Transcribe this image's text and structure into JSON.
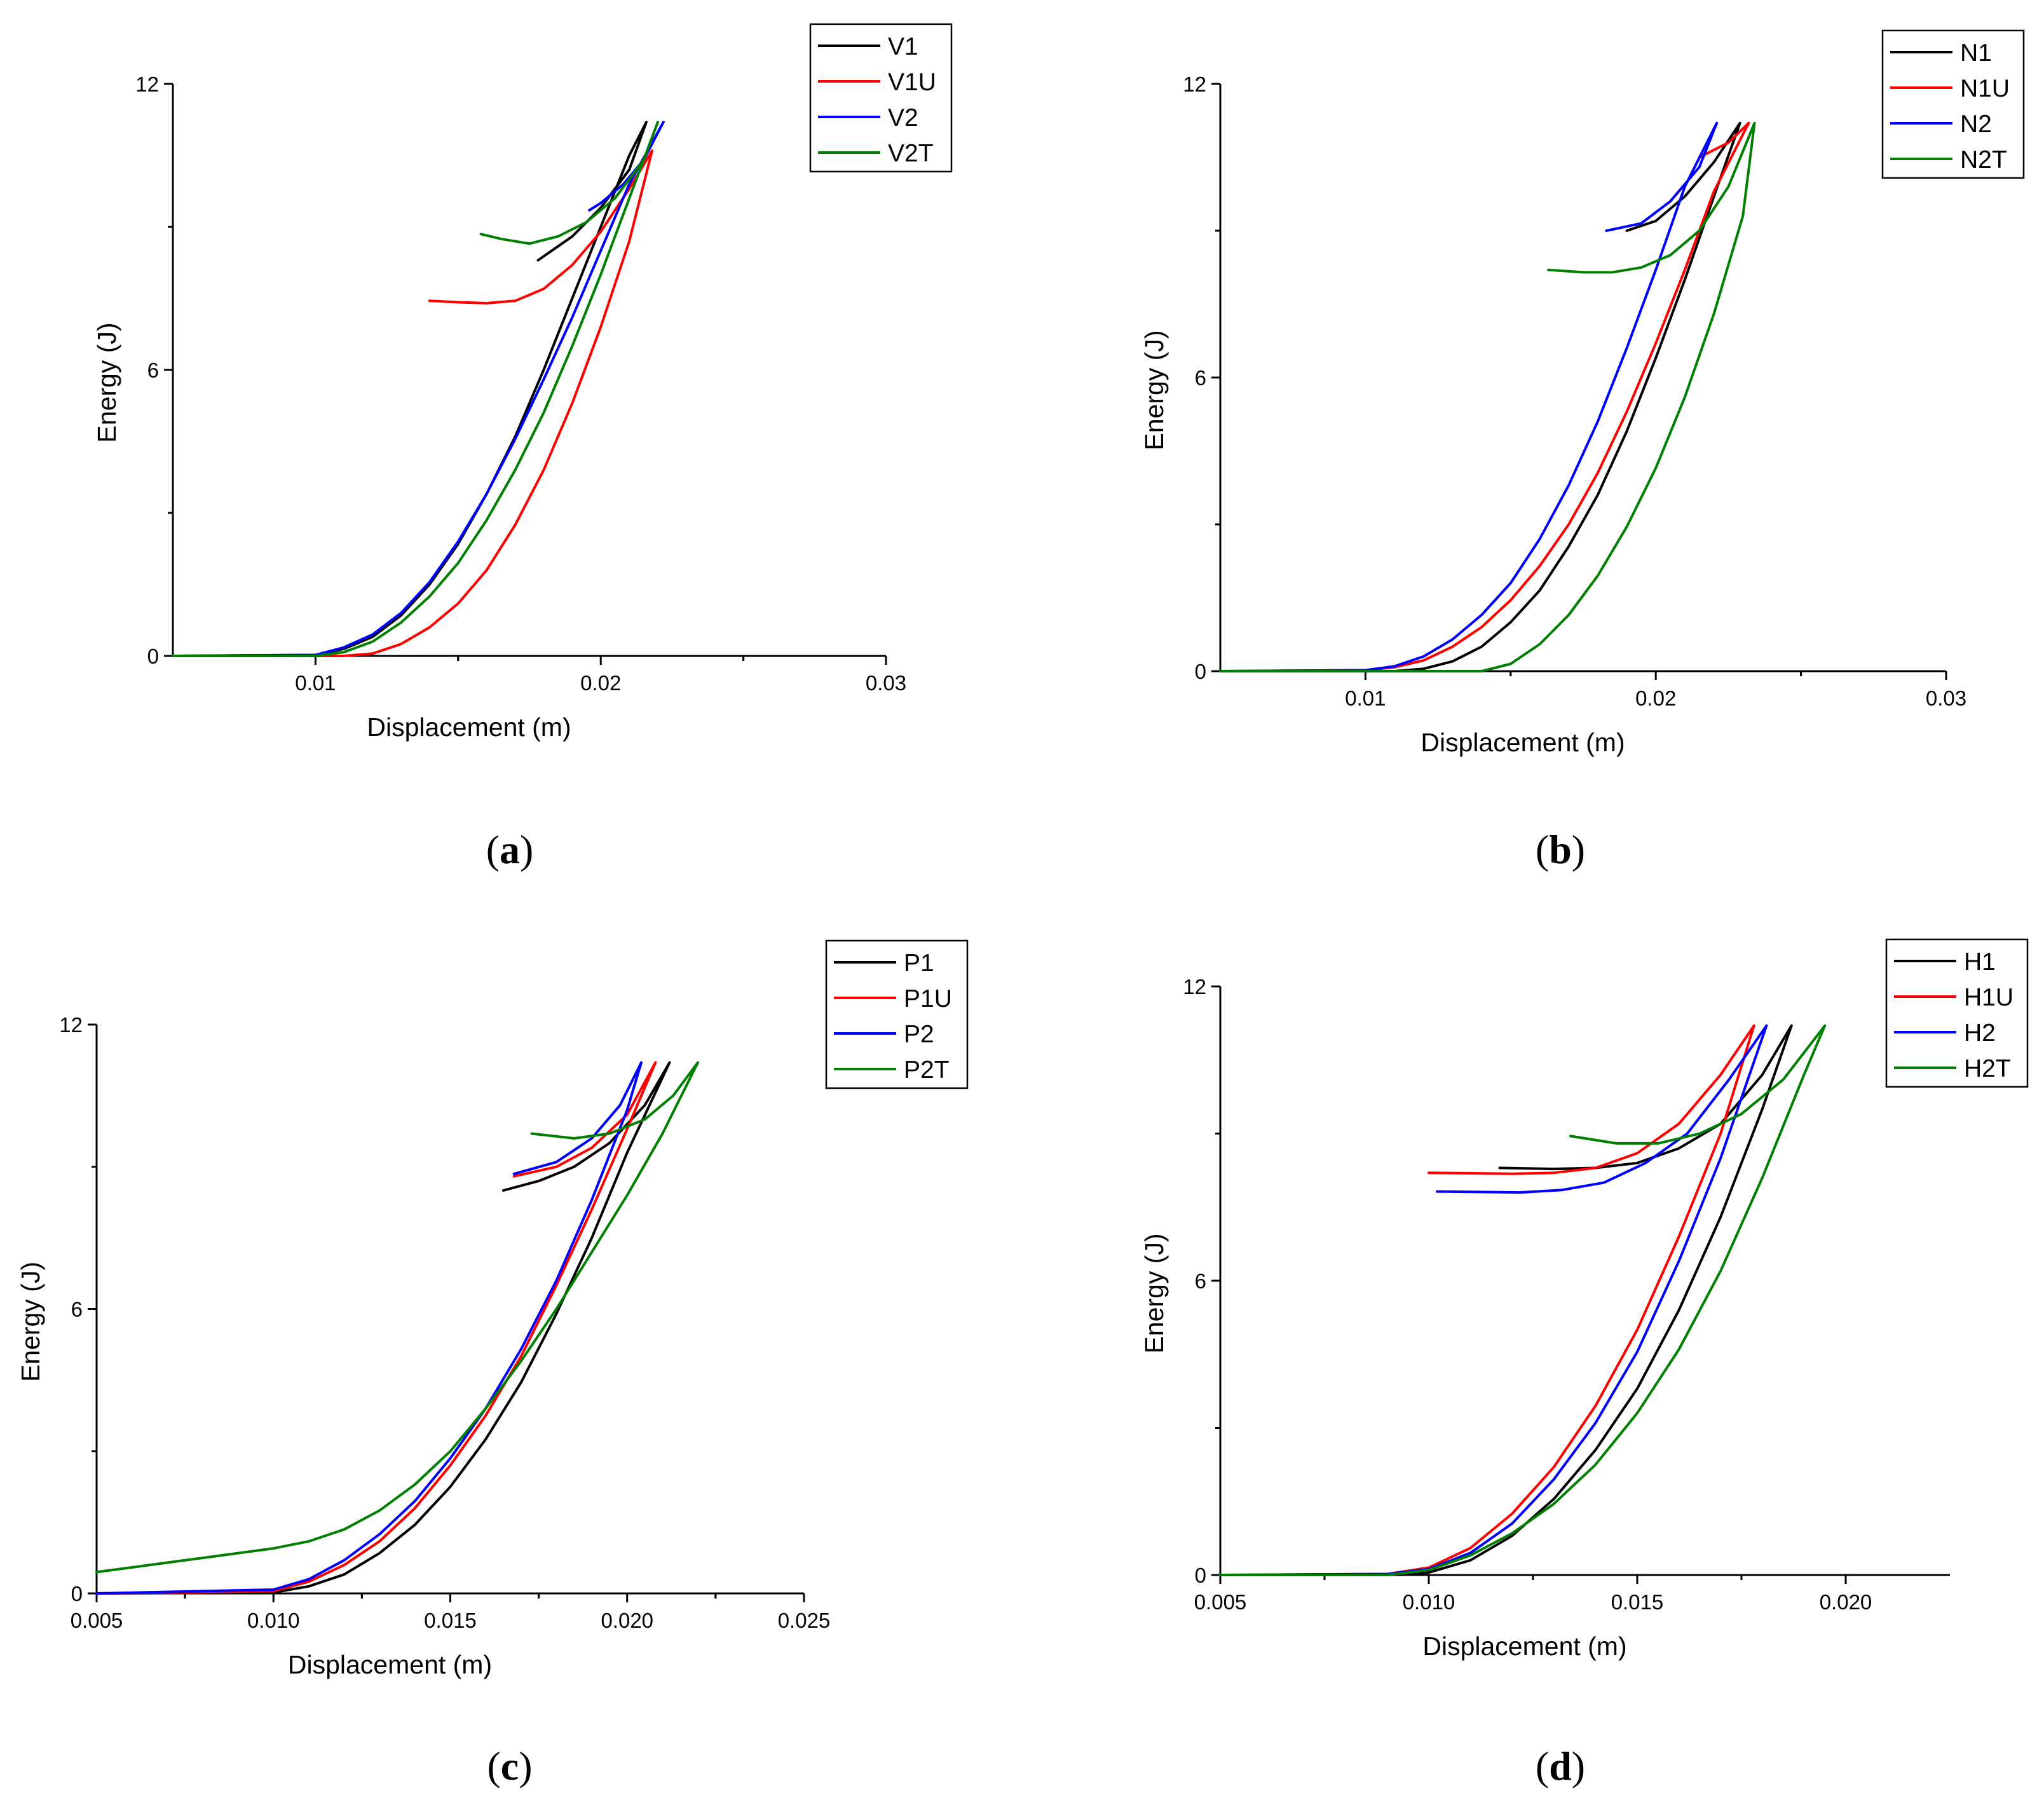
{
  "figure": {
    "panel_count": 4
  },
  "chart_data": [
    {
      "type": "line",
      "panel_label": "(a)",
      "xlabel": "Displacement (m)",
      "ylabel": "Energy (J)",
      "xlim": [
        0.005,
        0.03
      ],
      "ylim": [
        0,
        12
      ],
      "xticks": [
        0.01,
        0.02,
        0.03
      ],
      "xtick_labels": [
        "0.01",
        "0.02",
        "0.03"
      ],
      "yticks": [
        0,
        6,
        12
      ],
      "ytick_labels": [
        "0",
        "6",
        "12"
      ],
      "legend": [
        "V1",
        "V1U",
        "V2",
        "V2T"
      ],
      "legend_position": "top-right",
      "series": [
        {
          "name": "V1",
          "color": "#000000",
          "x": [
            0.005,
            0.01,
            0.011,
            0.012,
            0.013,
            0.014,
            0.015,
            0.016,
            0.017,
            0.018,
            0.019,
            0.02,
            0.021,
            0.0216,
            0.021,
            0.02,
            0.019,
            0.0178
          ],
          "y": [
            0,
            0.02,
            0.15,
            0.4,
            0.85,
            1.5,
            2.35,
            3.4,
            4.6,
            6.0,
            7.5,
            9.0,
            10.5,
            11.2,
            10.2,
            9.4,
            8.8,
            8.3
          ]
        },
        {
          "name": "V1U",
          "color": "#ff0000",
          "x": [
            0.005,
            0.011,
            0.012,
            0.013,
            0.014,
            0.015,
            0.016,
            0.017,
            0.018,
            0.019,
            0.02,
            0.021,
            0.0218,
            0.021,
            0.02,
            0.019,
            0.018,
            0.017,
            0.016,
            0.015,
            0.014
          ],
          "y": [
            0,
            0,
            0.05,
            0.25,
            0.6,
            1.1,
            1.8,
            2.75,
            3.9,
            5.3,
            6.9,
            8.7,
            10.6,
            9.8,
            8.9,
            8.2,
            7.7,
            7.45,
            7.4,
            7.42,
            7.45
          ]
        },
        {
          "name": "V2",
          "color": "#0000ff",
          "x": [
            0.005,
            0.01,
            0.011,
            0.012,
            0.013,
            0.014,
            0.015,
            0.016,
            0.017,
            0.018,
            0.019,
            0.02,
            0.021,
            0.0222,
            0.0215,
            0.0208,
            0.02,
            0.0196
          ],
          "y": [
            0,
            0.02,
            0.18,
            0.45,
            0.9,
            1.55,
            2.4,
            3.4,
            4.55,
            5.8,
            7.1,
            8.5,
            9.9,
            11.2,
            10.4,
            9.9,
            9.5,
            9.35
          ]
        },
        {
          "name": "V2T",
          "color": "#008000",
          "x": [
            0.005,
            0.01,
            0.011,
            0.012,
            0.013,
            0.014,
            0.015,
            0.016,
            0.017,
            0.018,
            0.019,
            0.02,
            0.021,
            0.022,
            0.0215,
            0.0205,
            0.0195,
            0.0185,
            0.0175,
            0.0165,
            0.0158
          ],
          "y": [
            0,
            0,
            0.08,
            0.3,
            0.7,
            1.25,
            1.95,
            2.85,
            3.9,
            5.1,
            6.5,
            8.0,
            9.6,
            11.2,
            10.4,
            9.6,
            9.1,
            8.8,
            8.65,
            8.75,
            8.85
          ]
        }
      ]
    },
    {
      "type": "line",
      "panel_label": "(b)",
      "xlabel": "Displacement (m)",
      "ylabel": "Energy (J)",
      "xlim": [
        0.005,
        0.03
      ],
      "ylim": [
        0,
        12
      ],
      "xticks": [
        0.01,
        0.02,
        0.03
      ],
      "xtick_labels": [
        "0.01",
        "0.02",
        "0.03"
      ],
      "yticks": [
        0,
        6,
        12
      ],
      "ytick_labels": [
        "0",
        "6",
        "12"
      ],
      "legend": [
        "N1",
        "N1U",
        "N2",
        "N2T"
      ],
      "legend_position": "top-right",
      "series": [
        {
          "name": "N1",
          "color": "#000000",
          "x": [
            0.005,
            0.011,
            0.012,
            0.013,
            0.014,
            0.015,
            0.016,
            0.017,
            0.018,
            0.019,
            0.02,
            0.021,
            0.022,
            0.0229,
            0.022,
            0.021,
            0.02,
            0.019
          ],
          "y": [
            0,
            0,
            0.05,
            0.2,
            0.5,
            1.0,
            1.65,
            2.55,
            3.6,
            4.9,
            6.4,
            8.0,
            9.7,
            11.2,
            10.4,
            9.7,
            9.2,
            9.0
          ]
        },
        {
          "name": "N1U",
          "color": "#ff0000",
          "x": [
            0.005,
            0.01,
            0.011,
            0.012,
            0.013,
            0.014,
            0.015,
            0.016,
            0.017,
            0.018,
            0.019,
            0.02,
            0.021,
            0.022,
            0.0232,
            0.0225,
            0.0215
          ],
          "y": [
            0,
            0.02,
            0.08,
            0.22,
            0.5,
            0.9,
            1.45,
            2.15,
            3.0,
            4.05,
            5.3,
            6.7,
            8.2,
            9.8,
            11.2,
            10.8,
            10.5
          ]
        },
        {
          "name": "N2",
          "color": "#0000ff",
          "x": [
            0.005,
            0.01,
            0.011,
            0.012,
            0.013,
            0.014,
            0.015,
            0.016,
            0.017,
            0.018,
            0.019,
            0.02,
            0.021,
            0.0221,
            0.0215,
            0.0205,
            0.0195,
            0.0183
          ],
          "y": [
            0,
            0.02,
            0.1,
            0.3,
            0.65,
            1.15,
            1.8,
            2.7,
            3.8,
            5.1,
            6.6,
            8.2,
            9.9,
            11.2,
            10.3,
            9.6,
            9.15,
            9.0
          ]
        },
        {
          "name": "N2T",
          "color": "#008000",
          "x": [
            0.005,
            0.014,
            0.015,
            0.016,
            0.017,
            0.018,
            0.019,
            0.02,
            0.021,
            0.022,
            0.023,
            0.0234,
            0.0225,
            0.0215,
            0.0205,
            0.0195,
            0.0185,
            0.0175,
            0.0163
          ],
          "y": [
            0,
            0,
            0.15,
            0.55,
            1.15,
            1.95,
            2.95,
            4.15,
            5.6,
            7.3,
            9.3,
            11.2,
            9.9,
            9.0,
            8.5,
            8.25,
            8.15,
            8.15,
            8.2
          ]
        }
      ]
    },
    {
      "type": "line",
      "panel_label": "(c)",
      "xlabel": "Displacement (m)",
      "ylabel": "Energy (J)",
      "xlim": [
        0.005,
        0.025
      ],
      "ylim": [
        0,
        12
      ],
      "xticks": [
        0.005,
        0.01,
        0.015,
        0.02,
        0.025
      ],
      "xtick_labels": [
        "0.005",
        "0.010",
        "0.015",
        "0.020",
        "0.025"
      ],
      "yticks": [
        0,
        6,
        12
      ],
      "ytick_labels": [
        "0",
        "6",
        "12"
      ],
      "legend": [
        "P1",
        "P1U",
        "P2",
        "P2T"
      ],
      "legend_position": "top-right",
      "series": [
        {
          "name": "P1",
          "color": "#000000",
          "x": [
            0.005,
            0.01,
            0.011,
            0.012,
            0.013,
            0.014,
            0.015,
            0.016,
            0.017,
            0.018,
            0.019,
            0.02,
            0.0212,
            0.0205,
            0.0195,
            0.0185,
            0.0175,
            0.0165
          ],
          "y": [
            0,
            0.02,
            0.15,
            0.4,
            0.85,
            1.45,
            2.25,
            3.25,
            4.45,
            5.9,
            7.5,
            9.3,
            11.2,
            10.3,
            9.5,
            9.0,
            8.7,
            8.5
          ]
        },
        {
          "name": "P1U",
          "color": "#ff0000",
          "x": [
            0.005,
            0.01,
            0.011,
            0.012,
            0.013,
            0.014,
            0.015,
            0.016,
            0.017,
            0.018,
            0.019,
            0.02,
            0.0208,
            0.02,
            0.019,
            0.018,
            0.0168
          ],
          "y": [
            0,
            0.05,
            0.25,
            0.6,
            1.1,
            1.8,
            2.7,
            3.75,
            5.0,
            6.5,
            8.1,
            9.8,
            11.2,
            10.1,
            9.4,
            9.0,
            8.8
          ]
        },
        {
          "name": "P2",
          "color": "#0000ff",
          "x": [
            0.005,
            0.01,
            0.011,
            0.012,
            0.013,
            0.014,
            0.015,
            0.016,
            0.017,
            0.018,
            0.019,
            0.02,
            0.0204,
            0.0198,
            0.019,
            0.018,
            0.0168
          ],
          "y": [
            0,
            0.08,
            0.3,
            0.7,
            1.25,
            1.95,
            2.85,
            3.9,
            5.15,
            6.6,
            8.3,
            10.2,
            11.2,
            10.3,
            9.6,
            9.1,
            8.85
          ]
        },
        {
          "name": "P2T",
          "color": "#008000",
          "x": [
            0.005,
            0.006,
            0.007,
            0.008,
            0.009,
            0.01,
            0.011,
            0.012,
            0.013,
            0.014,
            0.015,
            0.016,
            0.017,
            0.018,
            0.019,
            0.02,
            0.021,
            0.022,
            0.0213,
            0.0205,
            0.0195,
            0.0185,
            0.0173
          ],
          "y": [
            0.45,
            0.55,
            0.65,
            0.75,
            0.85,
            0.95,
            1.1,
            1.35,
            1.75,
            2.3,
            3.0,
            3.9,
            4.9,
            6.0,
            7.2,
            8.4,
            9.7,
            11.2,
            10.5,
            10.0,
            9.7,
            9.6,
            9.7
          ]
        }
      ]
    },
    {
      "type": "line",
      "panel_label": "(d)",
      "xlabel": "Displacement (m)",
      "ylabel": "Energy (J)",
      "xlim": [
        0.005,
        0.0225
      ],
      "ylim": [
        0,
        12
      ],
      "xticks": [
        0.005,
        0.01,
        0.015,
        0.02
      ],
      "xtick_labels": [
        "0.005",
        "0.010",
        "0.015",
        "0.020"
      ],
      "yticks": [
        0,
        6,
        12
      ],
      "ytick_labels": [
        "0",
        "6",
        "12"
      ],
      "legend": [
        "H1",
        "H1U",
        "H2",
        "H2T"
      ],
      "legend_position": "top-right",
      "series": [
        {
          "name": "H1",
          "color": "#000000",
          "x": [
            0.005,
            0.009,
            0.01,
            0.011,
            0.012,
            0.013,
            0.014,
            0.015,
            0.016,
            0.017,
            0.018,
            0.0187,
            0.018,
            0.017,
            0.016,
            0.015,
            0.014,
            0.013,
            0.0117
          ],
          "y": [
            0,
            0,
            0.05,
            0.3,
            0.8,
            1.55,
            2.55,
            3.8,
            5.4,
            7.3,
            9.5,
            11.2,
            10.2,
            9.2,
            8.7,
            8.4,
            8.3,
            8.28,
            8.3
          ]
        },
        {
          "name": "H1U",
          "color": "#ff0000",
          "x": [
            0.005,
            0.009,
            0.01,
            0.011,
            0.012,
            0.013,
            0.014,
            0.015,
            0.016,
            0.017,
            0.0178,
            0.017,
            0.016,
            0.015,
            0.014,
            0.013,
            0.012,
            0.01
          ],
          "y": [
            0,
            0.02,
            0.15,
            0.55,
            1.25,
            2.2,
            3.45,
            5.0,
            6.9,
            9.0,
            11.2,
            10.2,
            9.2,
            8.6,
            8.3,
            8.2,
            8.18,
            8.2
          ]
        },
        {
          "name": "H2",
          "color": "#0000ff",
          "x": [
            0.005,
            0.009,
            0.01,
            0.011,
            0.012,
            0.013,
            0.014,
            0.015,
            0.016,
            0.017,
            0.0181,
            0.0172,
            0.0162,
            0.0152,
            0.0142,
            0.0132,
            0.0122,
            0.0102
          ],
          "y": [
            0,
            0.02,
            0.12,
            0.45,
            1.05,
            1.95,
            3.1,
            4.55,
            6.4,
            8.5,
            11.2,
            10.1,
            9.0,
            8.4,
            8.0,
            7.85,
            7.8,
            7.82
          ]
        },
        {
          "name": "H2T",
          "color": "#008000",
          "x": [
            0.005,
            0.009,
            0.01,
            0.011,
            0.012,
            0.013,
            0.014,
            0.015,
            0.016,
            0.017,
            0.018,
            0.019,
            0.0195,
            0.0185,
            0.0175,
            0.0165,
            0.0155,
            0.0145,
            0.0134
          ],
          "y": [
            0,
            0,
            0.1,
            0.4,
            0.85,
            1.45,
            2.25,
            3.3,
            4.6,
            6.2,
            8.1,
            10.2,
            11.2,
            10.1,
            9.4,
            9.0,
            8.8,
            8.8,
            8.95
          ]
        }
      ]
    }
  ]
}
